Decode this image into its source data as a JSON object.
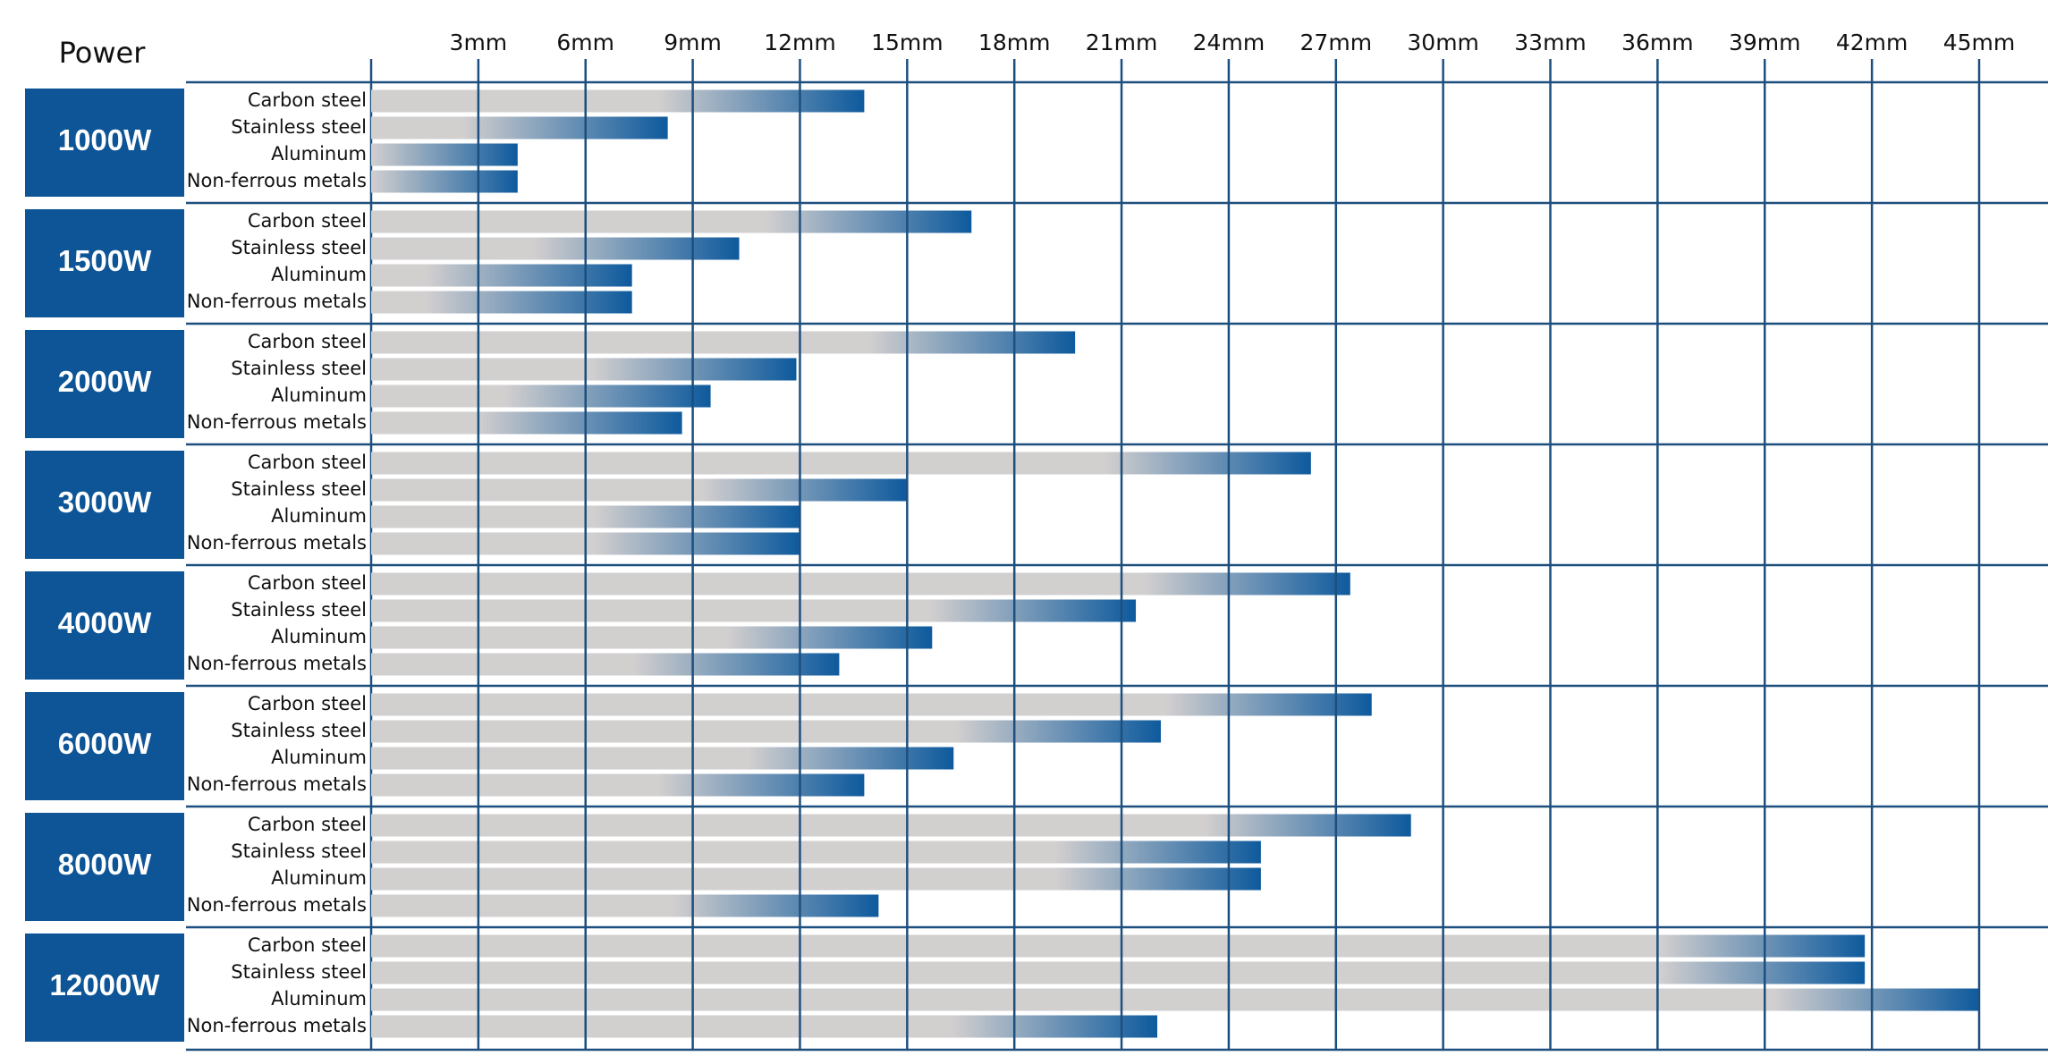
{
  "chart_data": {
    "type": "bar",
    "y_axis_label": "Power",
    "categories": [
      "1000W",
      "1500W",
      "2000W",
      "3000W",
      "4000W",
      "6000W",
      "8000W",
      "12000W"
    ],
    "series": [
      {
        "name": "Carbon steel",
        "values": [
          13.8,
          16.8,
          19.7,
          26.3,
          27.4,
          28,
          29.1,
          41.8
        ]
      },
      {
        "name": "Stainless steel",
        "values": [
          8.3,
          10.3,
          11.9,
          15,
          21.4,
          22.1,
          24.9,
          41.8
        ]
      },
      {
        "name": "Aluminum",
        "values": [
          4.1,
          7.3,
          9.5,
          12,
          15.7,
          16.3,
          24.9,
          45
        ]
      },
      {
        "name": "Non-ferrous metals",
        "values": [
          4.1,
          7.3,
          8.7,
          12,
          13.1,
          13.8,
          14.2,
          22
        ]
      }
    ],
    "xlim": [
      0,
      45
    ],
    "xticks": [
      {
        "value": 3,
        "label": "3mm"
      },
      {
        "value": 6,
        "label": "6mm"
      },
      {
        "value": 9,
        "label": "9mm"
      },
      {
        "value": 12,
        "label": "12mm"
      },
      {
        "value": 15,
        "label": "15mm"
      },
      {
        "value": 18,
        "label": "18mm"
      },
      {
        "value": 21,
        "label": "21mm"
      },
      {
        "value": 24,
        "label": "24mm"
      },
      {
        "value": 27,
        "label": "27mm"
      },
      {
        "value": 30,
        "label": "30mm"
      },
      {
        "value": 33,
        "label": "33mm"
      },
      {
        "value": 36,
        "label": "36mm"
      },
      {
        "value": 39,
        "label": "39mm"
      },
      {
        "value": 42,
        "label": "42mm"
      },
      {
        "value": 45,
        "label": "45mm"
      }
    ],
    "grid": true,
    "bar_color": "#0e5a9d",
    "bar_fade_color": "#d2cfcf",
    "group_color": "#0d5597",
    "grid_color": "#1d4f7e"
  }
}
